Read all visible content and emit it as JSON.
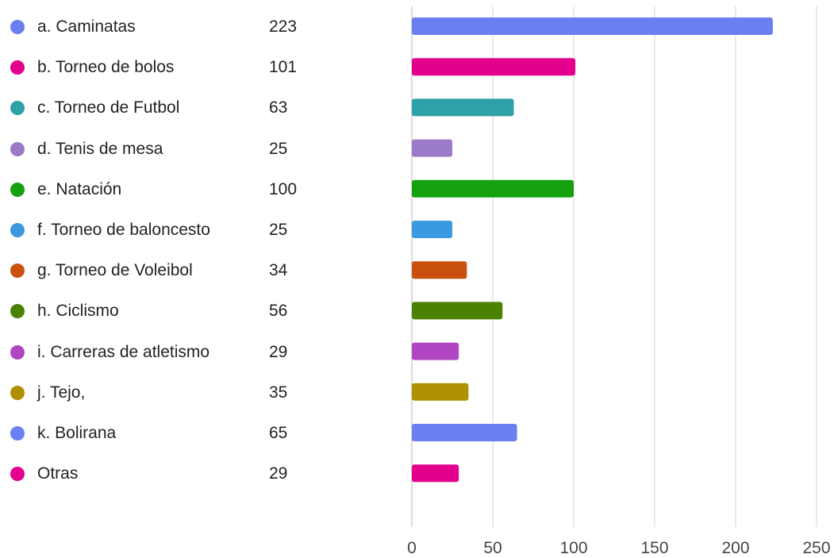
{
  "chart_data": {
    "type": "bar",
    "orientation": "horizontal",
    "title": "",
    "xlabel": "",
    "ylabel": "",
    "xlim": [
      0,
      250
    ],
    "x_ticks": [
      0,
      50,
      100,
      150,
      200,
      250
    ],
    "grid": true,
    "legend_placement": "left",
    "categories": [
      "a. Caminatas",
      "b. Torneo de bolos",
      "c. Torneo de Futbol",
      "d. Tenis de mesa",
      "e. Natación",
      "f. Torneo de baloncesto",
      "g. Torneo de Voleibol",
      "h. Ciclismo",
      "i. Carreras de atletismo",
      "j. Tejo,",
      "k. Bolirana",
      "Otras"
    ],
    "values": [
      223,
      101,
      63,
      25,
      100,
      25,
      34,
      56,
      29,
      35,
      65,
      29
    ],
    "colors": [
      "#6a7ff0",
      "#e3008c",
      "#2ea1a8",
      "#9b7ac7",
      "#13a10e",
      "#3b99e0",
      "#ca5010",
      "#498205",
      "#b146c2",
      "#b08f00",
      "#6a7ff0",
      "#e3008c"
    ]
  }
}
